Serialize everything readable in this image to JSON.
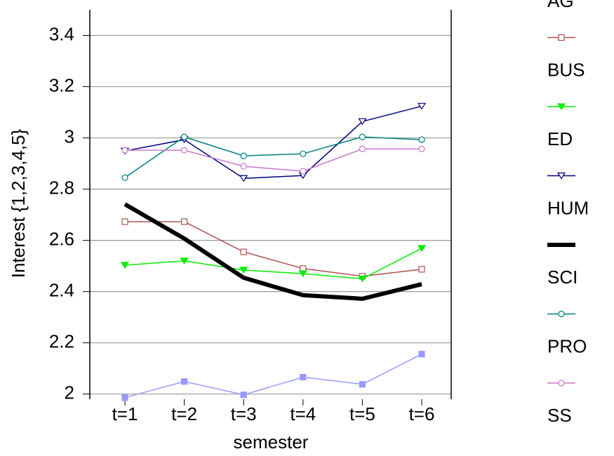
{
  "chart_data": {
    "type": "line",
    "y_label": "Interest {1,2,3,4,5}",
    "x_label": "semester",
    "categories": [
      "t=1",
      "t=2",
      "t=3",
      "t=4",
      "t=5",
      "t=6"
    ],
    "ylim": [
      1.98,
      3.5
    ],
    "yticks": [
      2,
      2.2,
      2.4,
      2.6,
      2.8,
      3,
      3.2,
      3.4
    ],
    "grid": true,
    "series": [
      {
        "name": "AG",
        "color": "#9999ff",
        "marker": "square-filled",
        "line_width": 1.5,
        "values": [
          1.986,
          2.049,
          1.997,
          2.066,
          2.038,
          2.156
        ]
      },
      {
        "name": "BUS",
        "color": "#b05050",
        "marker": "square-open",
        "line_width": 1.5,
        "values": [
          2.673,
          2.673,
          2.555,
          2.49,
          2.46,
          2.487
        ]
      },
      {
        "name": "ED",
        "color": "#00ee00",
        "marker": "triangle-down-filled",
        "line_width": 1.5,
        "values": [
          2.503,
          2.52,
          2.484,
          2.47,
          2.45,
          2.569
        ]
      },
      {
        "name": "HUM",
        "color": "#000080",
        "marker": "triangle-down-open",
        "line_width": 1.5,
        "values": [
          2.949,
          2.993,
          2.842,
          2.853,
          3.064,
          3.124
        ]
      },
      {
        "name": "SCI",
        "color": "#000000",
        "marker": "none",
        "line_width": 6,
        "values": [
          2.741,
          2.607,
          2.454,
          2.386,
          2.372,
          2.429
        ]
      },
      {
        "name": "PRO",
        "color": "#008080",
        "marker": "circle-open",
        "line_width": 1.5,
        "values": [
          2.845,
          3.004,
          2.93,
          2.938,
          3.004,
          2.993
        ]
      },
      {
        "name": "SS",
        "color": "#cc77cc",
        "marker": "circle-open",
        "line_width": 1.5,
        "values": [
          2.952,
          2.952,
          2.889,
          2.87,
          2.957,
          2.957
        ]
      }
    ]
  }
}
